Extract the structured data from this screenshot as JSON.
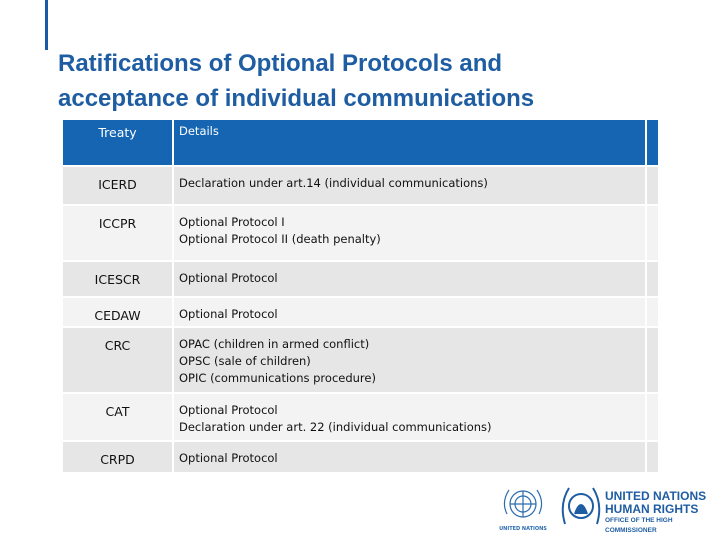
{
  "title": [
    "Ratifications of Optional Protocols and",
    "acceptance of individual communications"
  ],
  "table": {
    "header": [
      "Treaty",
      "Details"
    ],
    "rows": [
      {
        "treaty": "ICERD",
        "details": [
          "Declaration under art.14 (individual communications)"
        ]
      },
      {
        "treaty": "ICCPR",
        "details": [
          "Optional Protocol I",
          "Optional Protocol II (death penalty)"
        ]
      },
      {
        "treaty": "ICESCR",
        "details": [
          "Optional Protocol"
        ]
      },
      {
        "treaty": "CEDAW",
        "details": [
          "Optional Protocol"
        ]
      },
      {
        "treaty": "CRC",
        "details": [
          "OPAC (children in armed conflict)",
          "OPSC (sale of children)",
          "OPIC (communications procedure)"
        ]
      },
      {
        "treaty": "CAT",
        "details": [
          "Optional Protocol",
          "Declaration under art. 22 (individual communications)"
        ]
      },
      {
        "treaty": "CRPD",
        "details": [
          "Optional Protocol"
        ]
      }
    ]
  },
  "logos": {
    "un": "UNITED NATIONS",
    "ohchr": [
      "UNITED NATIONS",
      "HUMAN RIGHTS",
      "OFFICE OF THE HIGH COMMISSIONER"
    ]
  }
}
